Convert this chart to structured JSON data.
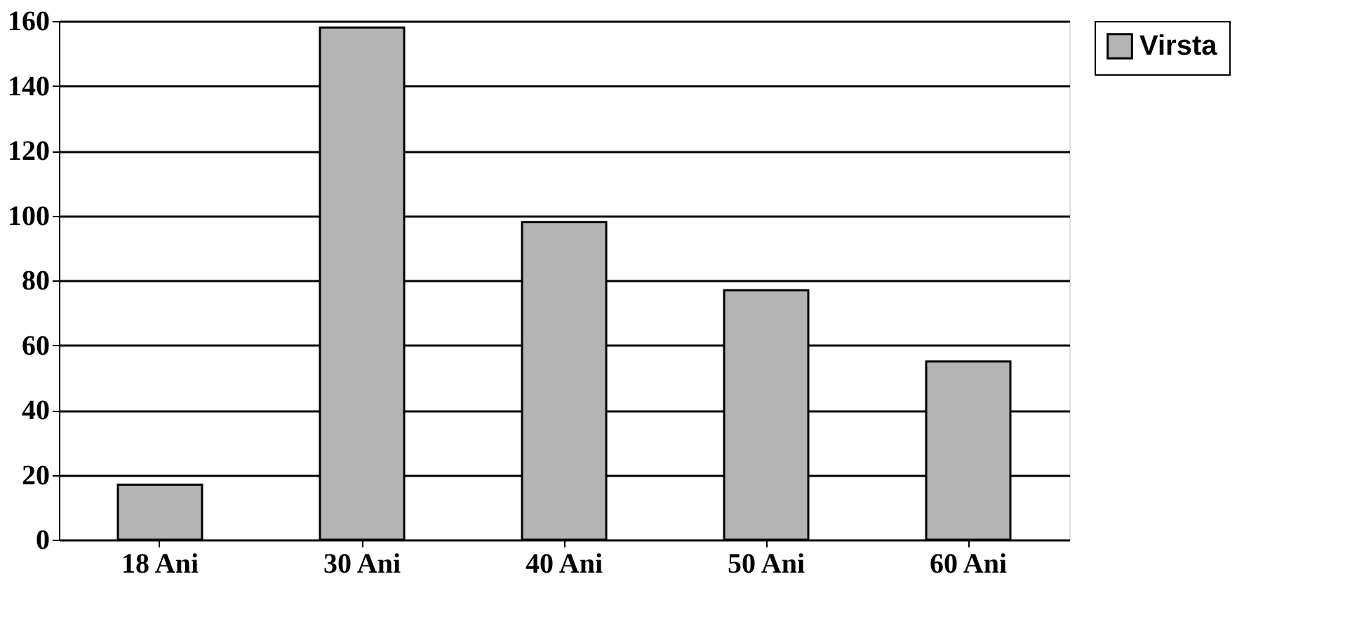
{
  "chart_data": {
    "type": "bar",
    "categories": [
      "18 Ani",
      "30 Ani",
      "40 Ani",
      "50 Ani",
      "60 Ani"
    ],
    "series": [
      {
        "name": "Virsta",
        "color": "#b4b4b4",
        "values": [
          17,
          158,
          98,
          77,
          55
        ]
      }
    ],
    "ylim": [
      0,
      160
    ],
    "yticks": [
      0,
      20,
      40,
      60,
      80,
      100,
      120,
      140,
      160
    ],
    "grid": "y",
    "legend": "right"
  }
}
